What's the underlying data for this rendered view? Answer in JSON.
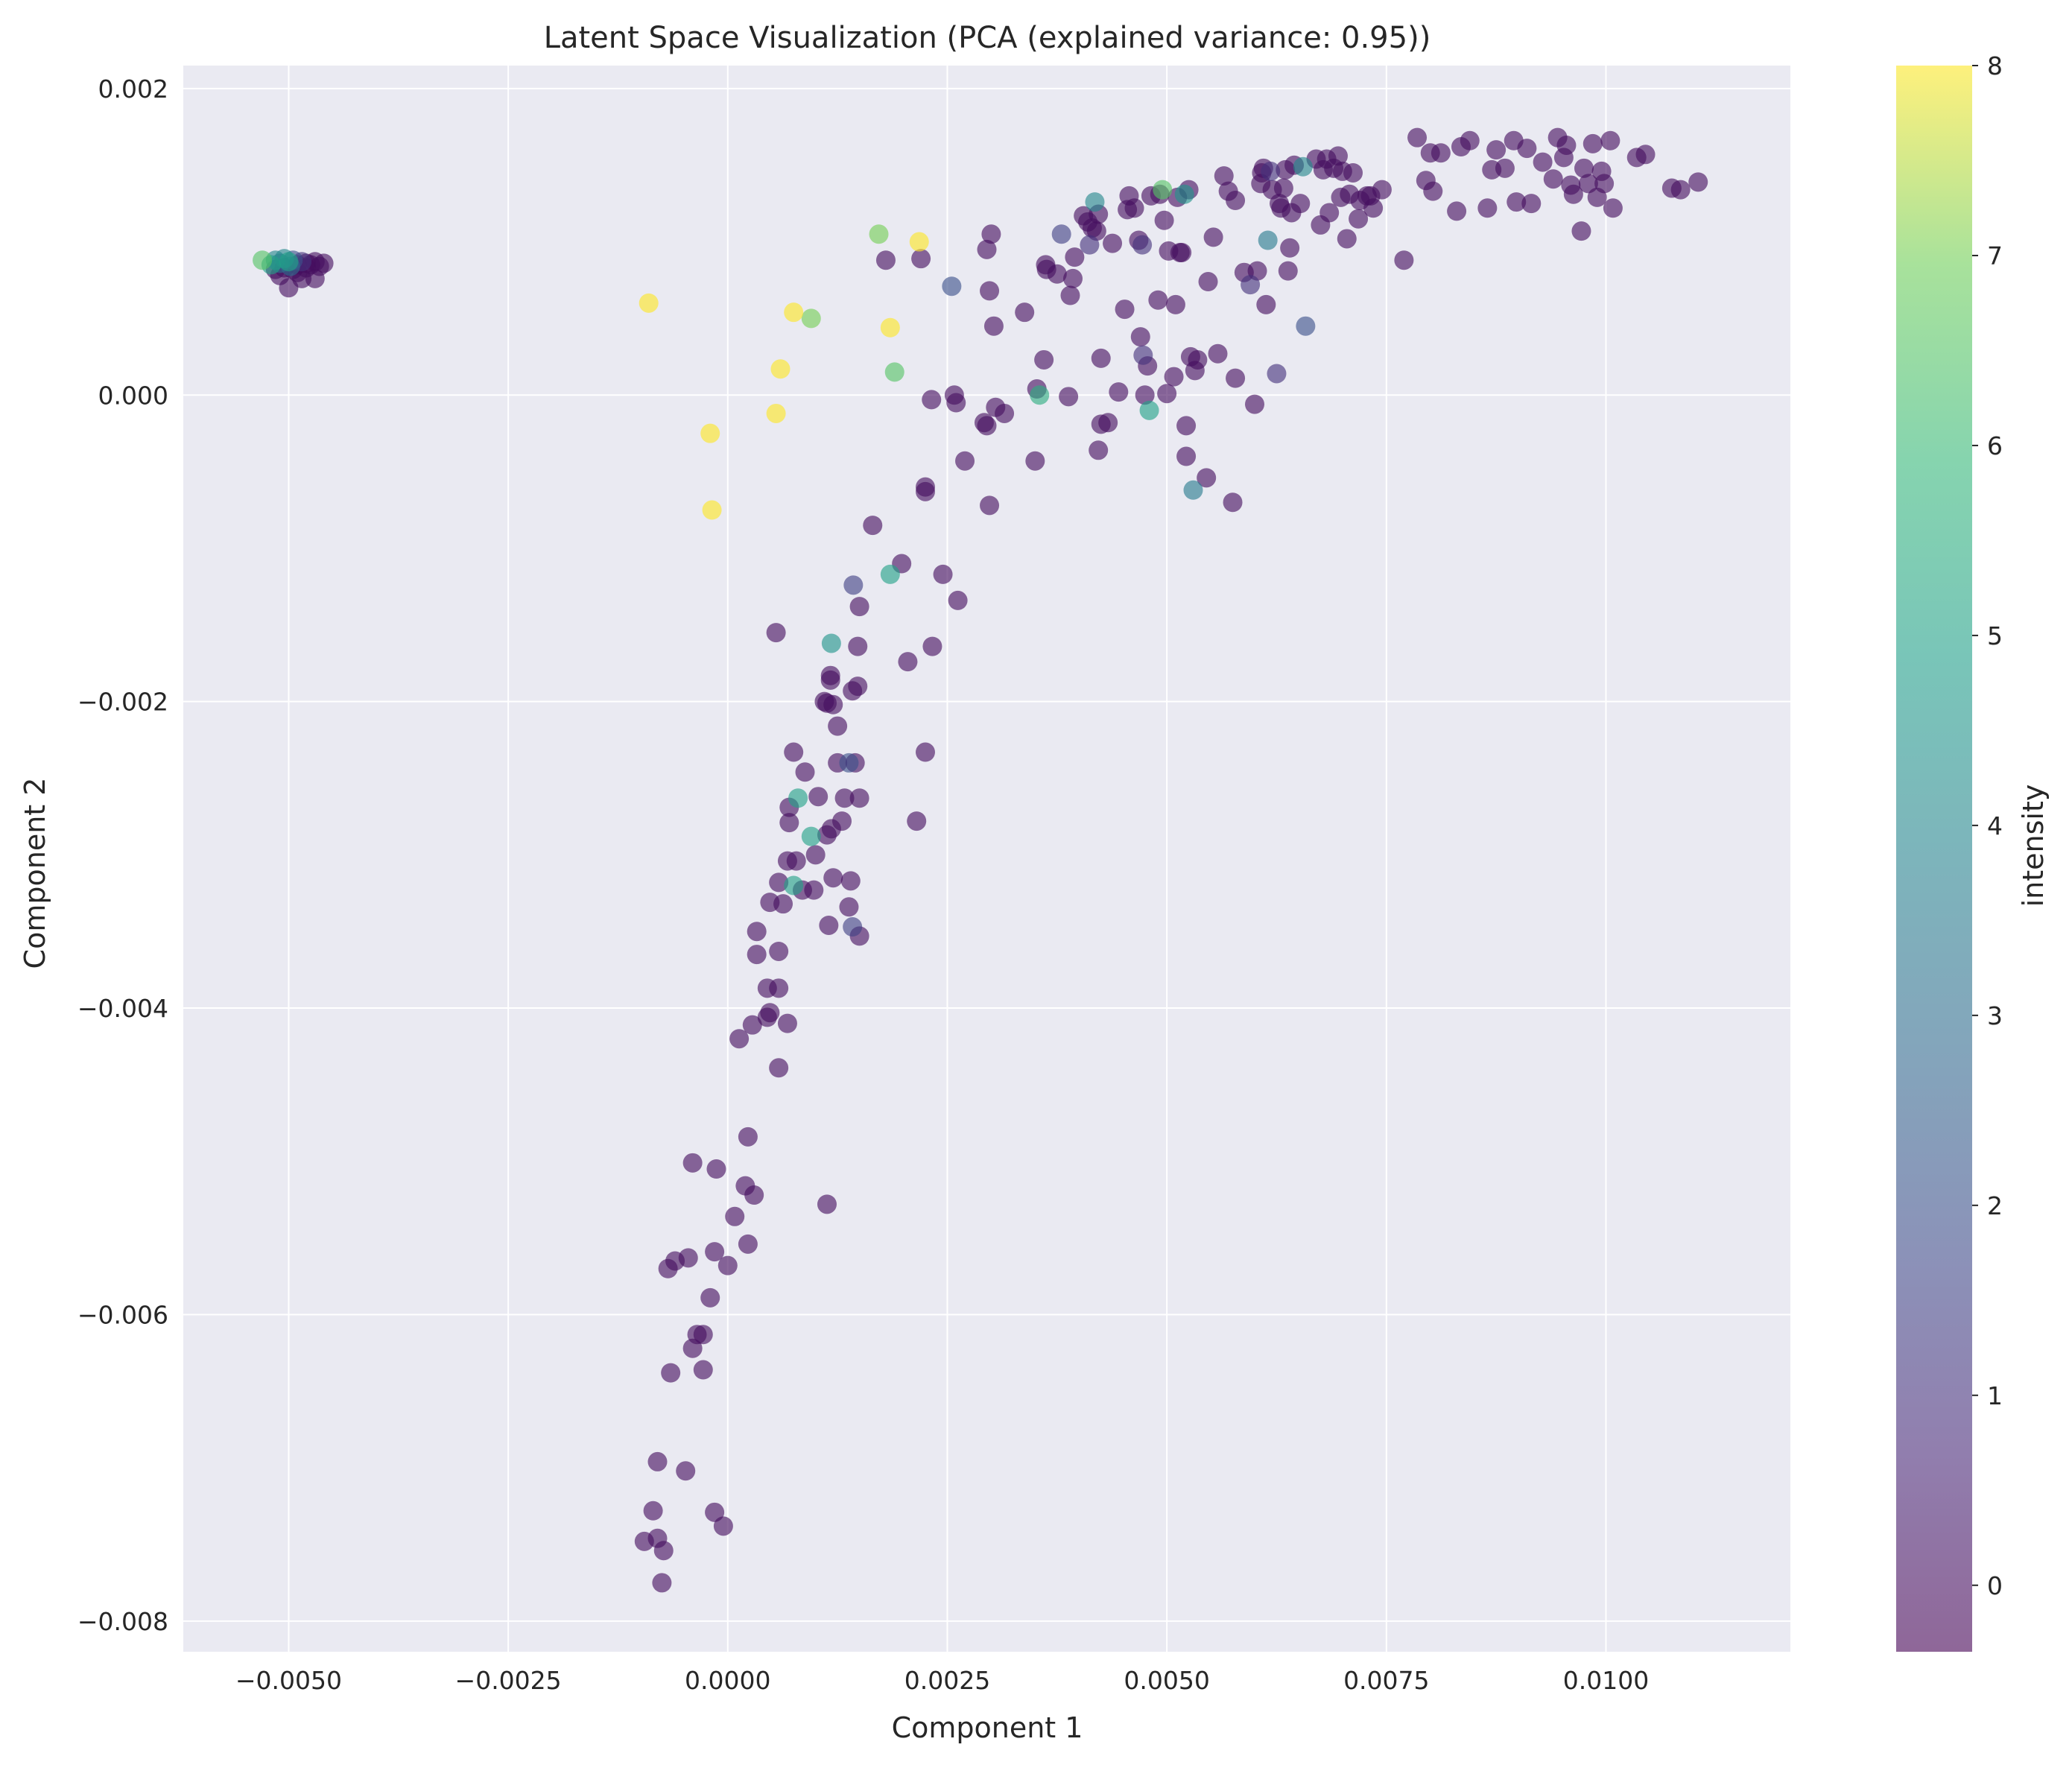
{
  "chart_data": {
    "type": "scatter",
    "title": "Latent Space Visualization (PCA (explained variance: 0.95))",
    "xlabel": "Component 1",
    "ylabel": "Component 2",
    "xlim": [
      -0.0062,
      0.0121
    ],
    "ylim": [
      -0.0082,
      0.00215
    ],
    "x_ticks": [
      -0.005,
      -0.0025,
      0.0,
      0.0025,
      0.005,
      0.0075,
      0.01
    ],
    "x_tick_labels": [
      "−0.0050",
      "−0.0025",
      "0.0000",
      "0.0025",
      "0.0050",
      "0.0075",
      "0.0100"
    ],
    "y_ticks": [
      0.002,
      0.0,
      -0.002,
      -0.004,
      -0.006,
      -0.008
    ],
    "y_tick_labels": [
      "0.002",
      "0.000",
      "−0.002",
      "−0.004",
      "−0.006",
      "−0.008"
    ],
    "grid": true,
    "colormap": "viridis",
    "colorbar": {
      "label": "intensity",
      "min": -0.35,
      "max": 8.0,
      "ticks": [
        0,
        1,
        2,
        3,
        4,
        5,
        6,
        7,
        8
      ],
      "tick_labels": [
        "0",
        "1",
        "2",
        "3",
        "4",
        "5",
        "6",
        "7",
        "8"
      ]
    },
    "point_columns": [
      "x",
      "y",
      "intensity"
    ],
    "points": [
      [
        -0.0053,
        0.00088,
        6.5
      ],
      [
        -0.0052,
        0.00085,
        5
      ],
      [
        -0.00515,
        0.00088,
        4
      ],
      [
        -0.0051,
        0.00086,
        3
      ],
      [
        -0.00505,
        0.00089,
        4
      ],
      [
        -0.005,
        0.00087,
        5
      ],
      [
        -0.00498,
        0.00084,
        3
      ],
      [
        -0.00495,
        0.00088,
        2
      ],
      [
        -0.0049,
        0.00085,
        0
      ],
      [
        -0.00485,
        0.00087,
        1
      ],
      [
        -0.0048,
        0.00086,
        0
      ],
      [
        -0.00475,
        0.00085,
        0
      ],
      [
        -0.0047,
        0.00087,
        0
      ],
      [
        -0.00465,
        0.00084,
        0
      ],
      [
        -0.0046,
        0.00086,
        0
      ],
      [
        -0.00515,
        0.00082,
        0
      ],
      [
        -0.0051,
        0.00078,
        0
      ],
      [
        -0.005,
        0.0007,
        0
      ],
      [
        -0.0049,
        0.0008,
        0
      ],
      [
        -0.00485,
        0.00076,
        0
      ],
      [
        -0.0048,
        0.00083,
        0
      ],
      [
        -0.0047,
        0.00076,
        0
      ],
      [
        -0.00505,
        0.00083,
        0
      ],
      [
        -0.00495,
        0.00082,
        0
      ],
      [
        -0.0009,
        0.0006,
        8
      ],
      [
        -0.0002,
        -0.00025,
        8
      ],
      [
        -0.00018,
        -0.00075,
        8
      ],
      [
        0.00055,
        -0.00012,
        8
      ],
      [
        0.0006,
        0.00017,
        8
      ],
      [
        0.00075,
        0.00054,
        8
      ],
      [
        0.00095,
        0.0005,
        7
      ],
      [
        0.00172,
        0.00105,
        7
      ],
      [
        0.00185,
        0.00044,
        8
      ],
      [
        0.00218,
        0.001,
        8
      ],
      [
        0.0019,
        0.00015,
        6.5
      ],
      [
        0.0018,
        0.00088,
        0
      ],
      [
        0.0022,
        0.00089,
        0
      ],
      [
        0.00255,
        0.00071,
        2
      ],
      [
        0.00295,
        0.00095,
        0
      ],
      [
        0.003,
        0.00105,
        0
      ],
      [
        0.00298,
        0.00068,
        0
      ],
      [
        0.00303,
        0.00045,
        0
      ],
      [
        0.00338,
        0.00054,
        0
      ],
      [
        0.00232,
        -3e-05,
        0
      ],
      [
        0.00258,
        0.0,
        0
      ],
      [
        0.0026,
        -5e-05,
        0
      ],
      [
        0.00292,
        -0.00018,
        0
      ],
      [
        0.00295,
        -0.0002,
        0
      ],
      [
        0.00305,
        -8e-05,
        0
      ],
      [
        0.00315,
        -0.00012,
        0
      ],
      [
        0.0027,
        -0.00043,
        0
      ],
      [
        0.00225,
        -0.00063,
        0
      ],
      [
        0.00225,
        -0.0006,
        0
      ],
      [
        0.00298,
        -0.00072,
        0
      ],
      [
        0.0035,
        -0.00043,
        0
      ],
      [
        0.00352,
        4e-05,
        0
      ],
      [
        0.00355,
        0.0,
        5.5
      ],
      [
        0.0036,
        0.00023,
        0
      ],
      [
        0.00362,
        0.00085,
        0
      ],
      [
        0.00363,
        0.00082,
        0
      ],
      [
        0.00375,
        0.00079,
        0
      ],
      [
        0.0038,
        0.00105,
        1.5
      ],
      [
        0.00388,
        -1e-05,
        0
      ],
      [
        0.0039,
        0.00065,
        0
      ],
      [
        0.00393,
        0.00076,
        0
      ],
      [
        0.00395,
        0.0009,
        0
      ],
      [
        0.00405,
        0.00117,
        0
      ],
      [
        0.0041,
        0.00113,
        0
      ],
      [
        0.00412,
        0.00098,
        1
      ],
      [
        0.00415,
        0.00109,
        0
      ],
      [
        0.00418,
        0.00126,
        4
      ],
      [
        0.0042,
        0.00107,
        0
      ],
      [
        0.00422,
        0.00118,
        0
      ],
      [
        0.00425,
        0.00024,
        0
      ],
      [
        0.00425,
        -0.00019,
        0
      ],
      [
        0.00422,
        -0.00036,
        0
      ],
      [
        0.00433,
        -0.00018,
        0
      ],
      [
        0.00438,
        0.00099,
        0
      ],
      [
        0.00445,
        2e-05,
        0
      ],
      [
        0.00452,
        0.00056,
        0
      ],
      [
        0.00455,
        0.00121,
        0
      ],
      [
        0.00457,
        0.0013,
        0
      ],
      [
        0.00463,
        0.00122,
        0
      ],
      [
        0.00468,
        0.00101,
        0
      ],
      [
        0.0047,
        0.00038,
        0
      ],
      [
        0.00472,
        0.00098,
        1
      ],
      [
        0.00473,
        0.00026,
        1
      ],
      [
        0.00475,
        0.0,
        0
      ],
      [
        0.00478,
        0.00019,
        0
      ],
      [
        0.0048,
        -0.0001,
        5
      ],
      [
        0.00482,
        0.0013,
        0
      ],
      [
        0.0049,
        0.00062,
        0
      ],
      [
        0.00492,
        0.00131,
        0
      ],
      [
        0.00495,
        0.00134,
        6.5
      ],
      [
        0.00497,
        0.00114,
        0
      ],
      [
        0.005,
        1e-05,
        0
      ],
      [
        0.00502,
        0.00094,
        0
      ],
      [
        0.00508,
        0.00012,
        0
      ],
      [
        0.0051,
        0.00059,
        0
      ],
      [
        0.00512,
        0.00129,
        0
      ],
      [
        0.00515,
        0.00093,
        0
      ],
      [
        0.00517,
        0.00093,
        0
      ],
      [
        0.0052,
        0.00131,
        4.5
      ],
      [
        0.00522,
        -0.0002,
        0
      ],
      [
        0.00522,
        -0.0004,
        0
      ],
      [
        0.00525,
        0.00134,
        0
      ],
      [
        0.00527,
        0.00025,
        0
      ],
      [
        0.0053,
        -0.00062,
        3.5
      ],
      [
        0.00532,
        0.00016,
        0
      ],
      [
        0.00535,
        0.00023,
        0
      ],
      [
        0.00545,
        -0.00054,
        0
      ],
      [
        0.00547,
        0.00074,
        0
      ],
      [
        0.00553,
        0.00103,
        0
      ],
      [
        0.00558,
        0.00027,
        0
      ],
      [
        0.00565,
        0.00143,
        0
      ],
      [
        0.0057,
        0.00133,
        0
      ],
      [
        0.00575,
        -0.0007,
        0
      ],
      [
        0.00578,
        0.00127,
        0
      ],
      [
        0.00578,
        0.00011,
        0
      ],
      [
        0.00588,
        0.0008,
        0
      ],
      [
        0.00595,
        0.00072,
        1
      ],
      [
        0.006,
        -6e-05,
        0
      ],
      [
        0.00603,
        0.00081,
        0
      ],
      [
        0.00607,
        0.00138,
        0
      ],
      [
        0.00608,
        0.00145,
        0
      ],
      [
        0.0061,
        0.00148,
        0
      ],
      [
        0.00613,
        0.00059,
        0
      ],
      [
        0.00615,
        0.00101,
        3.5
      ],
      [
        0.00618,
        0.00146,
        1
      ],
      [
        0.0062,
        0.00134,
        0
      ],
      [
        0.00625,
        0.00014,
        1
      ],
      [
        0.00628,
        0.00125,
        0
      ],
      [
        0.0063,
        0.00122,
        0
      ],
      [
        0.00633,
        0.00135,
        0
      ],
      [
        0.00635,
        0.00147,
        0
      ],
      [
        0.00638,
        0.00081,
        0
      ],
      [
        0.0064,
        0.00096,
        0
      ],
      [
        0.00642,
        0.00119,
        0
      ],
      [
        0.00645,
        0.0015,
        0
      ],
      [
        0.00652,
        0.00125,
        0
      ],
      [
        0.00655,
        0.00149,
        4
      ],
      [
        0.00658,
        0.00045,
        2
      ],
      [
        0.0067,
        0.00154,
        0
      ],
      [
        0.00675,
        0.00111,
        0
      ],
      [
        0.00678,
        0.00147,
        0
      ],
      [
        0.00682,
        0.00154,
        0
      ],
      [
        0.00685,
        0.00119,
        0
      ],
      [
        0.0069,
        0.00148,
        0
      ],
      [
        0.00695,
        0.00156,
        0
      ],
      [
        0.00698,
        0.00129,
        0
      ],
      [
        0.007,
        0.00146,
        0
      ],
      [
        0.00705,
        0.00102,
        0
      ],
      [
        0.00708,
        0.00131,
        0
      ],
      [
        0.00712,
        0.00145,
        0
      ],
      [
        0.00718,
        0.00115,
        0
      ],
      [
        0.0072,
        0.00127,
        0
      ],
      [
        0.00728,
        0.0013,
        0
      ],
      [
        0.00732,
        0.0013,
        0
      ],
      [
        0.00735,
        0.00122,
        0
      ],
      [
        0.00745,
        0.00134,
        0
      ],
      [
        0.0077,
        0.00088,
        0
      ],
      [
        0.00785,
        0.00168,
        0
      ],
      [
        0.00795,
        0.0014,
        0
      ],
      [
        0.008,
        0.00158,
        0
      ],
      [
        0.00803,
        0.00133,
        0
      ],
      [
        0.00812,
        0.00158,
        0
      ],
      [
        0.0083,
        0.0012,
        0
      ],
      [
        0.00835,
        0.00162,
        0
      ],
      [
        0.00845,
        0.00166,
        0
      ],
      [
        0.00865,
        0.00122,
        0
      ],
      [
        0.0087,
        0.00147,
        0
      ],
      [
        0.00875,
        0.0016,
        0
      ],
      [
        0.00885,
        0.00148,
        0
      ],
      [
        0.00895,
        0.00166,
        0
      ],
      [
        0.00898,
        0.00126,
        0
      ],
      [
        0.0091,
        0.00161,
        0
      ],
      [
        0.00915,
        0.00125,
        0
      ],
      [
        0.00928,
        0.00152,
        0
      ],
      [
        0.0094,
        0.00141,
        0
      ],
      [
        0.00945,
        0.00168,
        0
      ],
      [
        0.00952,
        0.00155,
        0
      ],
      [
        0.00955,
        0.00163,
        0
      ],
      [
        0.0096,
        0.00137,
        0
      ],
      [
        0.00963,
        0.00131,
        0
      ],
      [
        0.00972,
        0.00107,
        0
      ],
      [
        0.00975,
        0.00148,
        0
      ],
      [
        0.0098,
        0.00138,
        0
      ],
      [
        0.00985,
        0.00164,
        0
      ],
      [
        0.0099,
        0.00129,
        0
      ],
      [
        0.00995,
        0.00146,
        0
      ],
      [
        0.00998,
        0.00138,
        0
      ],
      [
        0.01005,
        0.00166,
        0
      ],
      [
        0.01008,
        0.00122,
        0
      ],
      [
        0.01035,
        0.00155,
        0
      ],
      [
        0.01045,
        0.00157,
        0
      ],
      [
        0.01075,
        0.00135,
        0
      ],
      [
        0.01085,
        0.00134,
        0
      ],
      [
        0.01105,
        0.00139,
        0
      ],
      [
        0.00165,
        -0.00085,
        0
      ],
      [
        0.00185,
        -0.00117,
        5
      ],
      [
        0.00198,
        -0.0011,
        0
      ],
      [
        0.00143,
        -0.00124,
        1.5
      ],
      [
        0.0015,
        -0.00138,
        0
      ],
      [
        0.00245,
        -0.00117,
        0
      ],
      [
        0.00262,
        -0.00134,
        0
      ],
      [
        0.00055,
        -0.00155,
        0
      ],
      [
        0.00118,
        -0.00162,
        4.5
      ],
      [
        0.00148,
        -0.00164,
        0
      ],
      [
        0.00205,
        -0.00174,
        0
      ],
      [
        0.00233,
        -0.00164,
        0
      ],
      [
        0.00117,
        -0.00183,
        0
      ],
      [
        0.00117,
        -0.00186,
        0
      ],
      [
        0.00148,
        -0.0019,
        0
      ],
      [
        0.00142,
        -0.00193,
        0
      ],
      [
        0.0011,
        -0.002,
        0
      ],
      [
        0.00113,
        -0.00201,
        0
      ],
      [
        0.0012,
        -0.00202,
        0
      ],
      [
        0.00125,
        -0.00216,
        0
      ],
      [
        0.00075,
        -0.00233,
        0
      ],
      [
        0.00225,
        -0.00233,
        0
      ],
      [
        0.00125,
        -0.0024,
        0
      ],
      [
        0.00138,
        -0.0024,
        2
      ],
      [
        0.00145,
        -0.0024,
        0
      ],
      [
        0.00088,
        -0.00246,
        0
      ],
      [
        0.0008,
        -0.00263,
        5
      ],
      [
        0.00103,
        -0.00262,
        0
      ],
      [
        0.00133,
        -0.00263,
        0
      ],
      [
        0.0015,
        -0.00263,
        0
      ],
      [
        0.0007,
        -0.00269,
        0
      ],
      [
        0.0007,
        -0.00279,
        0
      ],
      [
        0.0013,
        -0.00278,
        0
      ],
      [
        0.00215,
        -0.00278,
        0
      ],
      [
        0.00118,
        -0.00283,
        0
      ],
      [
        0.00113,
        -0.00287,
        0
      ],
      [
        0.00095,
        -0.00288,
        5
      ],
      [
        0.001,
        -0.003,
        0
      ],
      [
        0.00068,
        -0.00304,
        0
      ],
      [
        0.00078,
        -0.00304,
        0
      ],
      [
        0.0012,
        -0.00315,
        0
      ],
      [
        0.0014,
        -0.00317,
        0
      ],
      [
        0.00058,
        -0.00318,
        0
      ],
      [
        0.00075,
        -0.0032,
        5
      ],
      [
        0.00085,
        -0.00323,
        0
      ],
      [
        0.00098,
        -0.00323,
        0
      ],
      [
        0.00048,
        -0.00331,
        0
      ],
      [
        0.00063,
        -0.00332,
        0
      ],
      [
        0.00138,
        -0.00334,
        0
      ],
      [
        0.00115,
        -0.00346,
        0
      ],
      [
        0.00142,
        -0.00347,
        1.5
      ],
      [
        0.0015,
        -0.00353,
        0
      ],
      [
        0.00033,
        -0.0035,
        0
      ],
      [
        0.00058,
        -0.00363,
        0
      ],
      [
        0.00033,
        -0.00365,
        0
      ],
      [
        0.00045,
        -0.00387,
        0
      ],
      [
        0.00058,
        -0.00387,
        0
      ],
      [
        0.00048,
        -0.00403,
        0
      ],
      [
        0.00045,
        -0.00406,
        0
      ],
      [
        0.00028,
        -0.00411,
        0
      ],
      [
        0.00068,
        -0.0041,
        0
      ],
      [
        0.00013,
        -0.0042,
        0
      ],
      [
        0.00058,
        -0.00439,
        0
      ],
      [
        0.00023,
        -0.00484,
        0
      ],
      [
        -0.0004,
        -0.00501,
        0
      ],
      [
        -0.00013,
        -0.00505,
        0
      ],
      [
        0.0002,
        -0.00516,
        0
      ],
      [
        0.0003,
        -0.00522,
        0
      ],
      [
        0.00113,
        -0.00528,
        0
      ],
      [
        8e-05,
        -0.00536,
        0
      ],
      [
        0.00023,
        -0.00554,
        0
      ],
      [
        -0.00015,
        -0.00559,
        0
      ],
      [
        -0.00045,
        -0.00563,
        0
      ],
      [
        -0.0006,
        -0.00565,
        0
      ],
      [
        -0.00068,
        -0.0057,
        0
      ],
      [
        0.0,
        -0.00568,
        0
      ],
      [
        -0.0002,
        -0.00589,
        0
      ],
      [
        -0.00035,
        -0.00613,
        0
      ],
      [
        -0.00028,
        -0.00613,
        0
      ],
      [
        -0.0004,
        -0.00622,
        0
      ],
      [
        -0.00028,
        -0.00636,
        0
      ],
      [
        -0.00065,
        -0.00638,
        0
      ],
      [
        -0.0008,
        -0.00696,
        0
      ],
      [
        -0.00048,
        -0.00702,
        0
      ],
      [
        -0.00085,
        -0.00728,
        0
      ],
      [
        -0.00015,
        -0.00729,
        0
      ],
      [
        -5e-05,
        -0.00738,
        0
      ],
      [
        -0.00095,
        -0.00748,
        0
      ],
      [
        -0.0008,
        -0.00746,
        0
      ],
      [
        -0.00073,
        -0.00754,
        0
      ],
      [
        -0.00075,
        -0.00775,
        0
      ]
    ]
  }
}
